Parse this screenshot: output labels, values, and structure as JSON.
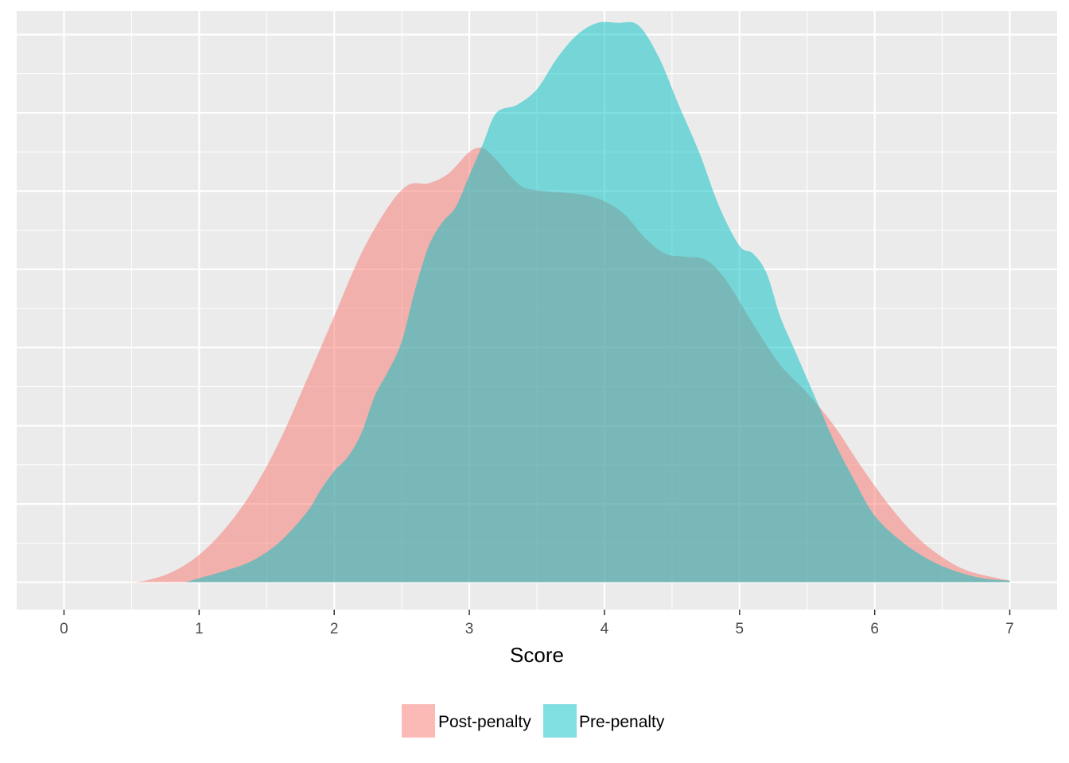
{
  "chart_data": {
    "type": "area",
    "subtype": "density",
    "title": "",
    "xlabel": "Score",
    "ylabel": "",
    "xlim": [
      -0.35,
      7.35
    ],
    "ylim": [
      -0.035,
      0.73
    ],
    "x_ticks": [
      "0",
      "1",
      "2",
      "3",
      "4",
      "5",
      "6",
      "7"
    ],
    "y_ticks_labeled": false,
    "grid": true,
    "legend_position": "bottom",
    "series": [
      {
        "name": "Post-penalty",
        "color": "#F8766D",
        "opacity": 0.5,
        "x": [
          0.45,
          0.6,
          0.8,
          1.0,
          1.2,
          1.4,
          1.6,
          1.8,
          2.0,
          2.2,
          2.4,
          2.55,
          2.7,
          2.85,
          3.0,
          3.1,
          3.2,
          3.3,
          3.4,
          3.55,
          3.7,
          3.85,
          4.0,
          4.15,
          4.3,
          4.45,
          4.6,
          4.75,
          4.9,
          5.1,
          5.3,
          5.5,
          5.7,
          5.9,
          6.1,
          6.3,
          6.5,
          6.7,
          7.0
        ],
        "y": [
          0.0,
          0.002,
          0.013,
          0.035,
          0.07,
          0.118,
          0.182,
          0.26,
          0.34,
          0.42,
          0.48,
          0.508,
          0.51,
          0.523,
          0.55,
          0.555,
          0.54,
          0.52,
          0.505,
          0.5,
          0.498,
          0.495,
          0.487,
          0.47,
          0.44,
          0.42,
          0.416,
          0.412,
          0.386,
          0.33,
          0.278,
          0.242,
          0.2,
          0.148,
          0.1,
          0.06,
          0.032,
          0.014,
          0.002
        ]
      },
      {
        "name": "Pre-penalty",
        "color": "#00BFC4",
        "opacity": 0.5,
        "x": [
          0.9,
          1.0,
          1.2,
          1.4,
          1.6,
          1.8,
          1.9,
          2.0,
          2.1,
          2.2,
          2.3,
          2.4,
          2.5,
          2.6,
          2.7,
          2.8,
          2.9,
          3.0,
          3.1,
          3.2,
          3.35,
          3.5,
          3.65,
          3.8,
          3.95,
          4.1,
          4.25,
          4.4,
          4.55,
          4.7,
          4.85,
          5.0,
          5.1,
          5.2,
          5.3,
          5.4,
          5.55,
          5.7,
          5.85,
          6.0,
          6.2,
          6.4,
          6.6,
          6.8,
          7.0
        ],
        "y": [
          0.0,
          0.005,
          0.015,
          0.028,
          0.052,
          0.09,
          0.118,
          0.142,
          0.16,
          0.19,
          0.238,
          0.27,
          0.308,
          0.375,
          0.43,
          0.46,
          0.48,
          0.52,
          0.56,
          0.6,
          0.61,
          0.63,
          0.67,
          0.7,
          0.715,
          0.715,
          0.712,
          0.672,
          0.61,
          0.55,
          0.48,
          0.43,
          0.42,
          0.395,
          0.34,
          0.3,
          0.24,
          0.18,
          0.13,
          0.085,
          0.052,
          0.029,
          0.014,
          0.005,
          0.002
        ]
      }
    ]
  },
  "legend": {
    "items": [
      "Post-penalty",
      "Pre-penalty"
    ]
  }
}
